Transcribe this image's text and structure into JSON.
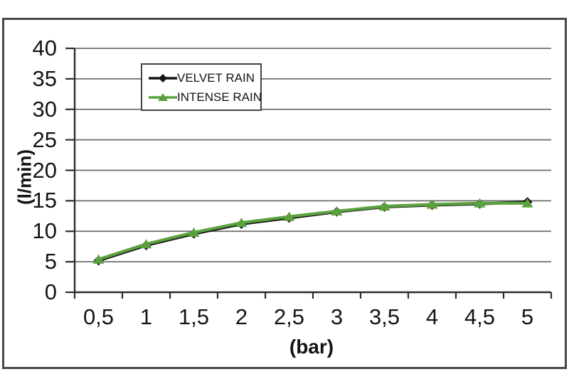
{
  "figure": {
    "background": "#ffffff",
    "frame_color": "#474747"
  },
  "chart_data": {
    "type": "line",
    "title": "",
    "xlabel": "(bar)",
    "ylabel": "(l/min)",
    "x": [
      0.5,
      1,
      1.5,
      2,
      2.5,
      3,
      3.5,
      4,
      4.5,
      5
    ],
    "x_tick_labels": [
      "0,5",
      "1",
      "1,5",
      "2",
      "2,5",
      "3",
      "3,5",
      "4",
      "4,5",
      "5"
    ],
    "y_ticks": [
      0,
      5,
      10,
      15,
      20,
      25,
      30,
      35,
      40
    ],
    "ylim": [
      0,
      40
    ],
    "grid": "horizontal-only",
    "legend_position": "inside-top-center",
    "series": [
      {
        "name": "VELVET RAIN",
        "color": "#141414",
        "marker": "diamond",
        "values": [
          5.2,
          7.7,
          9.6,
          11.2,
          12.2,
          13.2,
          14.0,
          14.3,
          14.5,
          14.8
        ]
      },
      {
        "name": "INTENSE RAIN",
        "color": "#5ba23f",
        "marker": "triangle",
        "values": [
          5.4,
          7.9,
          9.8,
          11.4,
          12.4,
          13.3,
          14.1,
          14.4,
          14.6,
          14.6
        ]
      }
    ],
    "colors": {
      "grid": "#6e6e6e",
      "axis": "#2d2d2d",
      "tick_text": "#141414"
    }
  }
}
